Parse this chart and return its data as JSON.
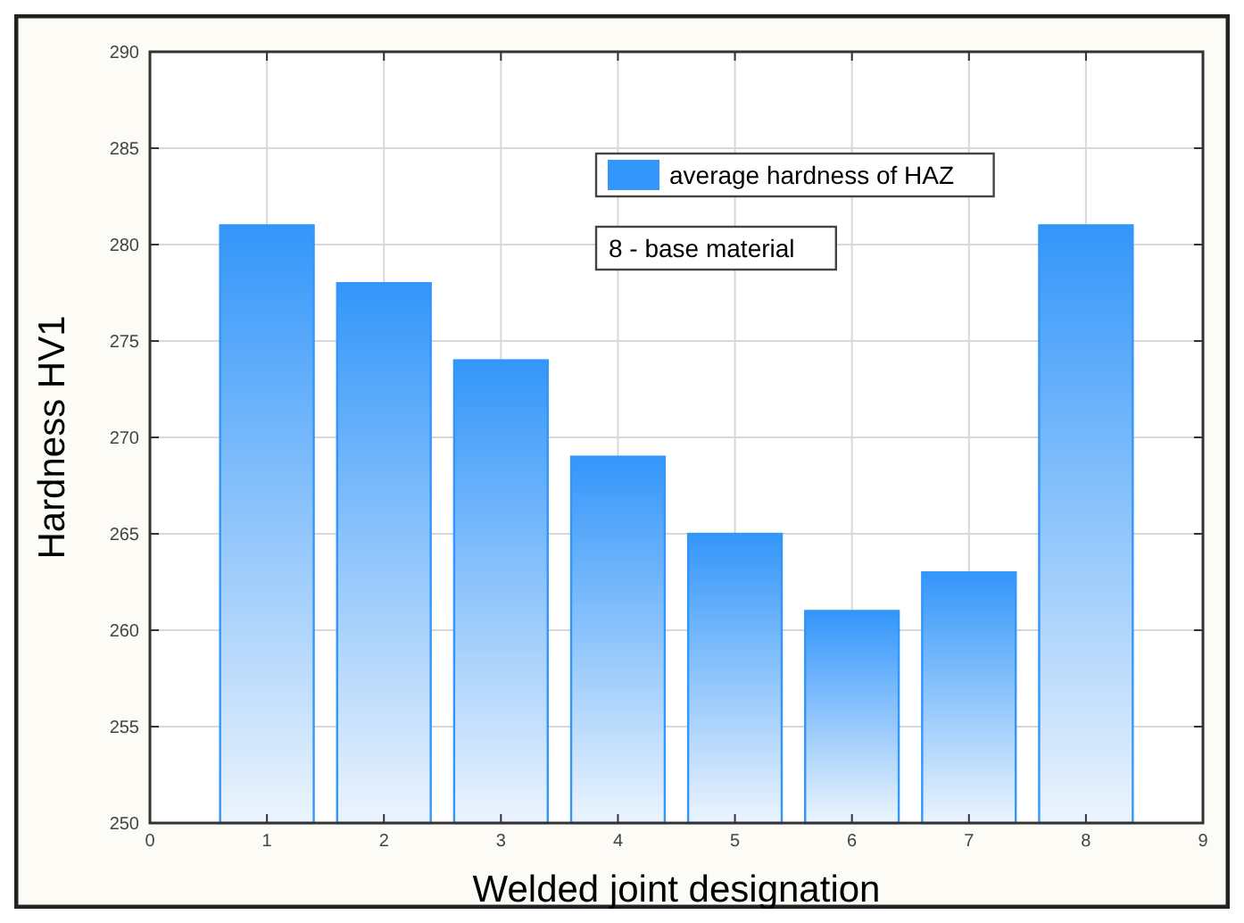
{
  "chart_data": {
    "type": "bar",
    "xlabel": "Welded joint designation",
    "ylabel": "Hardness HV1",
    "x": [
      1,
      2,
      3,
      4,
      5,
      6,
      7,
      8
    ],
    "series": [
      {
        "name": "average hardness of HAZ",
        "color": "#3396fa",
        "values": [
          281,
          278,
          274,
          269,
          265,
          261,
          263,
          281
        ]
      }
    ],
    "xlim": [
      0,
      9
    ],
    "xticks": [
      0,
      1,
      2,
      3,
      4,
      5,
      6,
      7,
      8,
      9
    ],
    "ylim": [
      250,
      290
    ],
    "yticks": [
      250,
      255,
      260,
      265,
      270,
      275,
      280,
      285,
      290
    ],
    "grid": true,
    "legend": "top right",
    "annotations": [
      "8 - base material"
    ]
  }
}
